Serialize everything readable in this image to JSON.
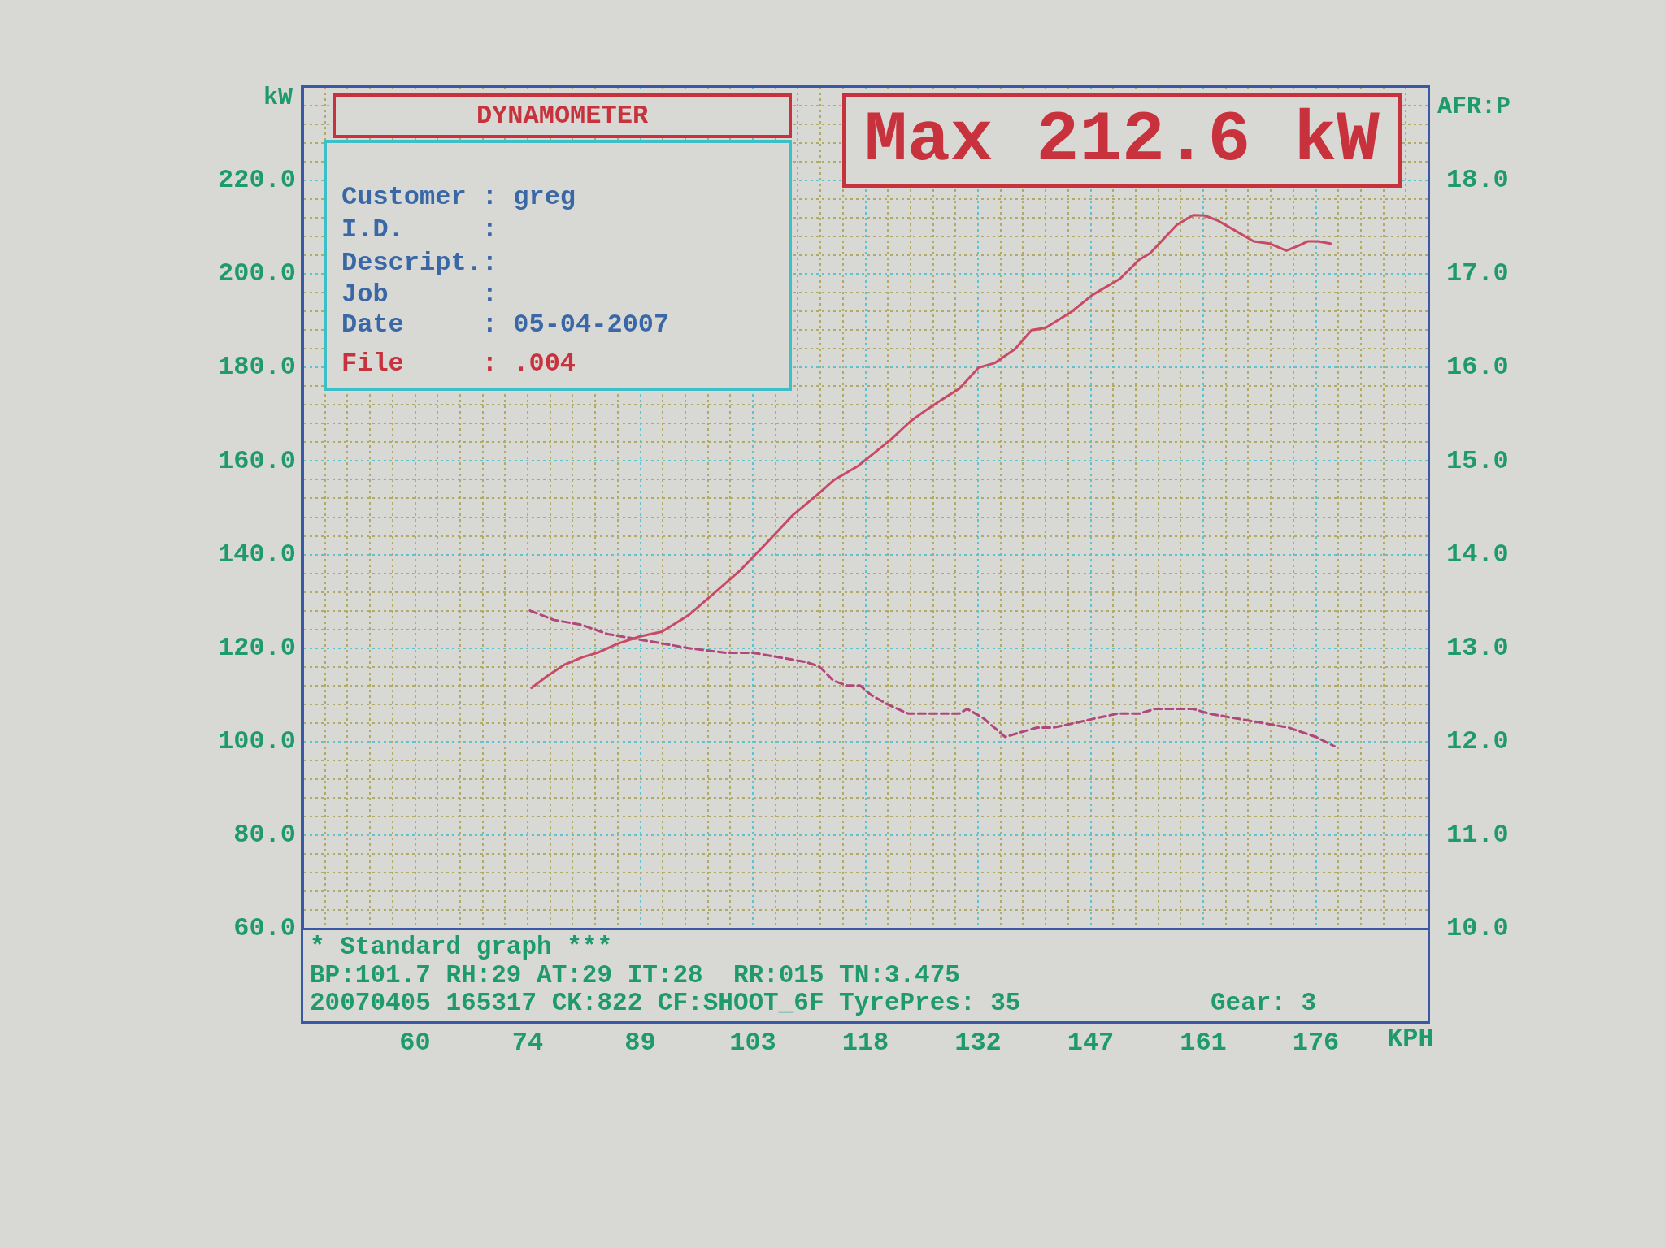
{
  "chart_data": {
    "type": "line",
    "title": "DYNAMOMETER",
    "xlabel": "KPH",
    "ylabel": "kW",
    "y2label": "AFR:P",
    "annotations": [
      "Max 212.6 kW",
      "Customer : greg",
      "I.D.     :",
      "Descript.:",
      "Job      :",
      "Date     : 05-04-2007",
      "File     : .004",
      "* Standard graph ***",
      "BP:101.7 RH:29 AT:29 IT:28  RR:015 TN:3.475",
      "20070405 165317 CK:822 CF:SHOOT_6F TyrePres: 35",
      "Gear: 3"
    ],
    "series": [
      {
        "color": "#c84a66",
        "line_style": "solid",
        "x": [
          75.0,
          77.0,
          79.3,
          81.5,
          83.5,
          86.2,
          89.0,
          91.8,
          95.2,
          98.7,
          101.8,
          105.0,
          108.7,
          111.6,
          114.0,
          117.1,
          121.2,
          123.8,
          125.9,
          127.7,
          130.1,
          132.6,
          134.7,
          137.3,
          139.4,
          141.2,
          144.6,
          147.2,
          150.8,
          153.2,
          154.7,
          158.1,
          160.2,
          161.7,
          163.3,
          165.9,
          168.0,
          170.1,
          172.2,
          173.7,
          175.0,
          176.3,
          177.9
        ],
        "values": [
          111.5,
          114,
          116.5,
          118,
          119,
          121,
          122.5,
          123.5,
          127,
          132,
          136.5,
          142,
          148.5,
          152.5,
          156,
          159,
          164.5,
          168.5,
          171,
          173,
          175.5,
          180,
          181,
          184,
          188,
          188.5,
          192,
          195.5,
          199,
          203,
          204.5,
          210.5,
          212.6,
          212.5,
          211.5,
          209,
          207,
          206.5,
          205,
          206,
          207,
          207,
          206.5
        ]
      },
      {
        "color": "#b0487a",
        "line_style": "dashed",
        "axis": "y2",
        "x": [
          74.8,
          77.9,
          81.4,
          84.8,
          88.3,
          91.8,
          95.2,
          100.0,
          103.5,
          107.0,
          110.4,
          112.1,
          113.9,
          115.6,
          117.3,
          118.7,
          120.8,
          123.5,
          127.0,
          130.1,
          131.1,
          133.2,
          136.0,
          138.0,
          140.1,
          142.2,
          145.0,
          147.7,
          150.5,
          153.3,
          155.3,
          160.2,
          162.2,
          165.6,
          169.1,
          172.5,
          176.0,
          178.4
        ],
        "values": [
          13.4,
          13.3,
          13.25,
          13.15,
          13.1,
          13.05,
          13.0,
          12.95,
          12.95,
          12.9,
          12.85,
          12.8,
          12.65,
          12.6,
          12.6,
          12.5,
          12.4,
          12.3,
          12.3,
          12.3,
          12.35,
          12.25,
          12.05,
          12.1,
          12.15,
          12.15,
          12.2,
          12.25,
          12.3,
          12.3,
          12.35,
          12.35,
          12.3,
          12.25,
          12.2,
          12.15,
          12.05,
          11.95
        ]
      }
    ],
    "xlim": [
      45.5,
      190.5
    ],
    "xticks": [
      {
        "value": 45.5,
        "label": null
      },
      {
        "value": 48.4,
        "label": null
      },
      {
        "value": 51.3,
        "label": null
      },
      {
        "value": 54.2,
        "label": null
      },
      {
        "value": 57.1,
        "label": null
      },
      60,
      {
        "value": 62.9,
        "label": null
      },
      {
        "value": 65.8,
        "label": null
      },
      {
        "value": 68.7,
        "label": null
      },
      {
        "value": 71.6,
        "label": null
      },
      {
        "value": 74.5,
        "label": "74"
      },
      {
        "value": 77.4,
        "label": null
      },
      {
        "value": 80.3,
        "label": null
      },
      {
        "value": 83.2,
        "label": null
      },
      {
        "value": 86.1,
        "label": null
      },
      89,
      {
        "value": 91.9,
        "label": null
      },
      {
        "value": 94.8,
        "label": null
      },
      {
        "value": 97.7,
        "label": null
      },
      {
        "value": 100.6,
        "label": null
      },
      {
        "value": 103.5,
        "label": "103"
      },
      {
        "value": 106.4,
        "label": null
      },
      {
        "value": 109.3,
        "label": null
      },
      {
        "value": 112.2,
        "label": null
      },
      {
        "value": 115.1,
        "label": null
      },
      118,
      {
        "value": 120.9,
        "label": null
      },
      {
        "value": 123.8,
        "label": null
      },
      {
        "value": 126.7,
        "label": null
      },
      {
        "value": 129.6,
        "label": null
      },
      {
        "value": 132.5,
        "label": "132"
      },
      {
        "value": 135.4,
        "label": null
      },
      {
        "value": 138.3,
        "label": null
      },
      {
        "value": 141.2,
        "label": null
      },
      {
        "value": 144.1,
        "label": null
      },
      147,
      {
        "value": 149.9,
        "label": null
      },
      {
        "value": 152.8,
        "label": null
      },
      {
        "value": 155.7,
        "label": null
      },
      {
        "value": 158.6,
        "label": null
      },
      {
        "value": 161.5,
        "label": "161"
      },
      {
        "value": 164.4,
        "label": null
      },
      {
        "value": 167.3,
        "label": null
      },
      {
        "value": 170.2,
        "label": null
      },
      {
        "value": 173.1,
        "label": null
      },
      176,
      {
        "value": 178.9,
        "label": null
      },
      {
        "value": 181.8,
        "label": null
      },
      {
        "value": 184.7,
        "label": null
      },
      {
        "value": 187.6,
        "label": null
      },
      {
        "value": 190.5,
        "label": null
      }
    ],
    "ylim": [
      60,
      240
    ],
    "yticks": [
      {
        "value": 60,
        "label": "60.0"
      },
      {
        "value": 64,
        "label": null
      },
      {
        "value": 68,
        "label": null
      },
      {
        "value": 72,
        "label": null
      },
      {
        "value": 76,
        "label": null
      },
      {
        "value": 80,
        "label": "80.0"
      },
      {
        "value": 84,
        "label": null
      },
      {
        "value": 88,
        "label": null
      },
      {
        "value": 92,
        "label": null
      },
      {
        "value": 96,
        "label": null
      },
      {
        "value": 100,
        "label": "100.0"
      },
      {
        "value": 104,
        "label": null
      },
      {
        "value": 108,
        "label": null
      },
      {
        "value": 112,
        "label": null
      },
      {
        "value": 116,
        "label": null
      },
      {
        "value": 120,
        "label": "120.0"
      },
      {
        "value": 124,
        "label": null
      },
      {
        "value": 128,
        "label": null
      },
      {
        "value": 132,
        "label": null
      },
      {
        "value": 136,
        "label": null
      },
      {
        "value": 140,
        "label": "140.0"
      },
      {
        "value": 144,
        "label": null
      },
      {
        "value": 148,
        "label": null
      },
      {
        "value": 152,
        "label": null
      },
      {
        "value": 156,
        "label": null
      },
      {
        "value": 160,
        "label": "160.0"
      },
      {
        "value": 164,
        "label": null
      },
      {
        "value": 168,
        "label": null
      },
      {
        "value": 172,
        "label": null
      },
      {
        "value": 176,
        "label": null
      },
      {
        "value": 180,
        "label": "180.0"
      },
      {
        "value": 184,
        "label": null
      },
      {
        "value": 188,
        "label": null
      },
      {
        "value": 192,
        "label": null
      },
      {
        "value": 196,
        "label": null
      },
      {
        "value": 200,
        "label": "200.0"
      },
      {
        "value": 204,
        "label": null
      },
      {
        "value": 208,
        "label": null
      },
      {
        "value": 212,
        "label": null
      },
      {
        "value": 216,
        "label": null
      },
      {
        "value": 220,
        "label": "220.0"
      },
      {
        "value": 224,
        "label": null
      },
      {
        "value": 228,
        "label": null
      },
      {
        "value": 232,
        "label": null
      },
      {
        "value": 236,
        "label": null
      },
      {
        "value": 240,
        "label": null
      }
    ],
    "y2lim": [
      10,
      19
    ],
    "y2ticks": [
      {
        "value": 10,
        "label": "10.0"
      },
      {
        "value": 11,
        "label": "11.0"
      },
      {
        "value": 12,
        "label": "12.0"
      },
      {
        "value": 13,
        "label": "13.0"
      },
      {
        "value": 14,
        "label": "14.0"
      },
      {
        "value": 15,
        "label": "15.0"
      },
      {
        "value": 16,
        "label": "16.0"
      },
      {
        "value": 17,
        "label": "17.0"
      },
      {
        "value": 18,
        "label": "18.0"
      }
    ],
    "grid": true
  }
}
